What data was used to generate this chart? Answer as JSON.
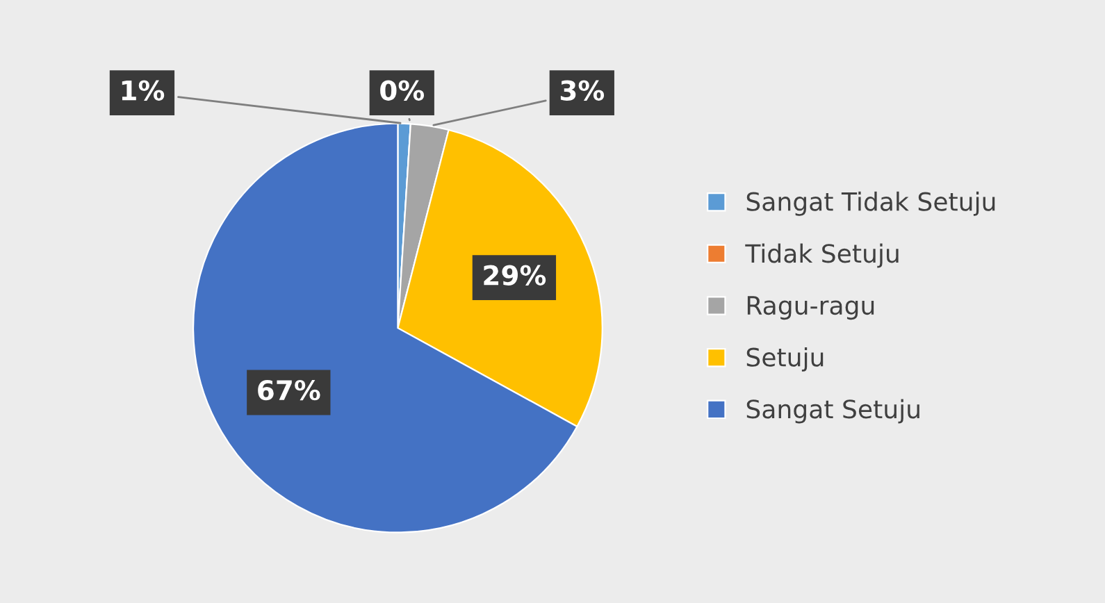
{
  "chart_data": {
    "type": "pie",
    "categories": [
      "Sangat Tidak Setuju",
      "Tidak Setuju",
      "Ragu-ragu",
      "Setuju",
      "Sangat Setuju"
    ],
    "values": [
      1,
      0,
      3,
      29,
      67
    ],
    "colors": [
      "#5b9bd5",
      "#ed7d31",
      "#a5a5a5",
      "#ffc000",
      "#4472c4"
    ],
    "value_labels": [
      "1%",
      "0%",
      "3%",
      "29%",
      "67%"
    ],
    "legend": "right"
  }
}
